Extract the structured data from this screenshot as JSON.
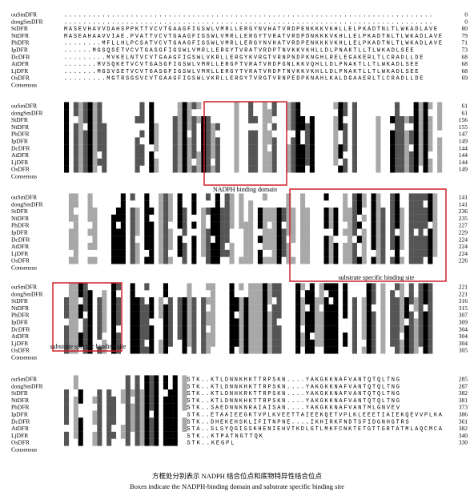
{
  "figure": {
    "blocks": [
      {
        "rows": [
          {
            "name": "ouSmDFR",
            "seq": "..............................................................................",
            "end": "0"
          },
          {
            "name": "dongSmDFR",
            "seq": "..............................................................................",
            "end": "0"
          },
          {
            "name": "StDFR",
            "seq": "MASEVHAVVDAHSPPKTTVCVTGAAGFIGSWLVMRLLERGYNVHATVRDPENKKKVKHLLELPKADTNLTLWKADLAVE",
            "end": "80"
          },
          {
            "name": "NtDFR",
            "seq": "MASEAHAAVVIAE.PVATTVCVTGAAGFIGSWLVMRLLERGYTVRATVRDPDNKKKVKHLLELPKADTNLTLWKADLAVE",
            "end": "79"
          },
          {
            "name": "PhDFR",
            "seq": "........MFLLHLPCSATVCVTGAAGFIGSWLVMRLLERGYNVHATVRDPENKKKVKHLLELPKADTNLTLWKADLAVE",
            "end": "71"
          },
          {
            "name": "IpDFR",
            "seq": "......MGSQSETVCVTGASGFIGSWLVMRLLERGYTVRATVRDPTNVKKVKHLLDLPNAKTLLTLWKADLSEE",
            "end": "73"
          },
          {
            "name": "DcDFR",
            "seq": ".........MVKELNTVCVTGAAGFIGSWLVKRLLERGYKVRGTVRNPNDPKNGHLRELEGAKERLTLCRADLLDE",
            "end": "68"
          },
          {
            "name": "AtDFR",
            "seq": ".......MVSQKETVCVTGASGFIGSWLVMRLLERGFTVRATVRDPGNLKKVQHLLDLPNAKTLLTLWKADLSEE",
            "end": "68"
          },
          {
            "name": "LjDFR",
            "seq": ".......MGSVSETVCVTGASGFIGSWLVMRLLERGYTVRATVRDPTNVKKVKHLLDLPNAKTLLTLWKADLSEE",
            "end": "68"
          },
          {
            "name": "OsDFR",
            "seq": ".........MGTRSGSVCVTGAAGFIGSWLVKRLLERGYTVRGTVRNPEDPKNAHLKALDGAAERLTLCRADLLDE",
            "end": "69"
          }
        ],
        "consensus": "Consensus"
      },
      {
        "rows": [
          {
            "name": "ouSmDFR",
            "end": "61"
          },
          {
            "name": "dongSmDFR",
            "end": "61"
          },
          {
            "name": "StDFR",
            "end": "156"
          },
          {
            "name": "NtDFR",
            "end": "155"
          },
          {
            "name": "PhDFR",
            "end": "147"
          },
          {
            "name": "IpDFR",
            "end": "149"
          },
          {
            "name": "DcDFR",
            "end": "144"
          },
          {
            "name": "AtDFR",
            "end": "144"
          },
          {
            "name": "LjDFR",
            "end": "144"
          },
          {
            "name": "OsDFR",
            "end": "149"
          }
        ],
        "consensus": "Consensus"
      },
      {
        "rows": [
          {
            "name": "ouSmDFR",
            "end": "141"
          },
          {
            "name": "dongSmDFR",
            "end": "141"
          },
          {
            "name": "StDFR",
            "end": "236"
          },
          {
            "name": "NtDFR",
            "end": "235"
          },
          {
            "name": "PhDFR",
            "end": "227"
          },
          {
            "name": "IpDFR",
            "end": "229"
          },
          {
            "name": "DcDFR",
            "end": "224"
          },
          {
            "name": "AtDFR",
            "end": "224"
          },
          {
            "name": "LjDFR",
            "end": "224"
          },
          {
            "name": "OsDFR",
            "end": "226"
          }
        ],
        "consensus": "Consensus"
      },
      {
        "rows": [
          {
            "name": "ouSmDFR",
            "end": "221"
          },
          {
            "name": "dongSmDFR",
            "end": "221"
          },
          {
            "name": "StDFR",
            "end": "316"
          },
          {
            "name": "NtDFR",
            "end": "315"
          },
          {
            "name": "PhDFR",
            "end": "307"
          },
          {
            "name": "IpDFR",
            "end": "309"
          },
          {
            "name": "DcDFR",
            "end": "304"
          },
          {
            "name": "AtDFR",
            "end": "304"
          },
          {
            "name": "LjDFR",
            "end": "304"
          },
          {
            "name": "OsDFR",
            "end": "305"
          }
        ],
        "consensus": "Consensus"
      },
      {
        "rows": [
          {
            "name": "ouSmDFR",
            "seq": "STK..KTLDNNKHKTTRPSKN....YAKGKKNAFVANTQTQLTNG",
            "end": "285"
          },
          {
            "name": "dongSmDFR",
            "seq": "STK..KTLDNNKHKTTRPSKN....YAKGKKNAFVANTQTQLTNG",
            "end": "287"
          },
          {
            "name": "StDFR",
            "seq": "STK..KTLDNHKRKTTRPSKN....YAKGKKNAFVANTQTQLTNG",
            "end": "382"
          },
          {
            "name": "NtDFR",
            "seq": "STK..KTLDNNKHKTTRPSKN....YAKGKKNAFVANTQTQLTNG",
            "end": "381"
          },
          {
            "name": "PhDFR",
            "seq": "STK..SAEDNNKNRAIAISAN....YAKGKKNAFVANTMLGNVEV",
            "end": "373"
          },
          {
            "name": "IpDFR",
            "seq": "STK..ETAAIEEGKTVPLKVEETTAIEEKQETVPLKLEEETIAIEKQEVVPLKA",
            "end": "386"
          },
          {
            "name": "DcDFR",
            "seq": "STK..DHEKEHSKLIFITNPNE....IKHIRKFNDTSFIDGNHGTRS",
            "end": "361"
          },
          {
            "name": "AtDFR",
            "seq": "STA..SLSYQGISSKHENIEHVTKDLGTLMKFCNKTETGTTGRTATMLAQCMCA",
            "end": "382"
          },
          {
            "name": "LjDFR",
            "seq": "STK..KTPATNGTTQK",
            "end": "340"
          },
          {
            "name": "OsDFR",
            "seq": "STK..KEGPL",
            "end": "330"
          }
        ],
        "consensus": "Consensus"
      }
    ],
    "annotations": {
      "nadph": "NADPH binding domain",
      "substrate_1": "substrate specific binding site",
      "substrate_2": "substrate specific binding site"
    },
    "caption": {
      "zh": "方框处分别表示 NADPH 结合位点和底物特异性结合位点",
      "en": "Boxes indicate the NADPH-binding domain and substrate specific binding site"
    }
  }
}
